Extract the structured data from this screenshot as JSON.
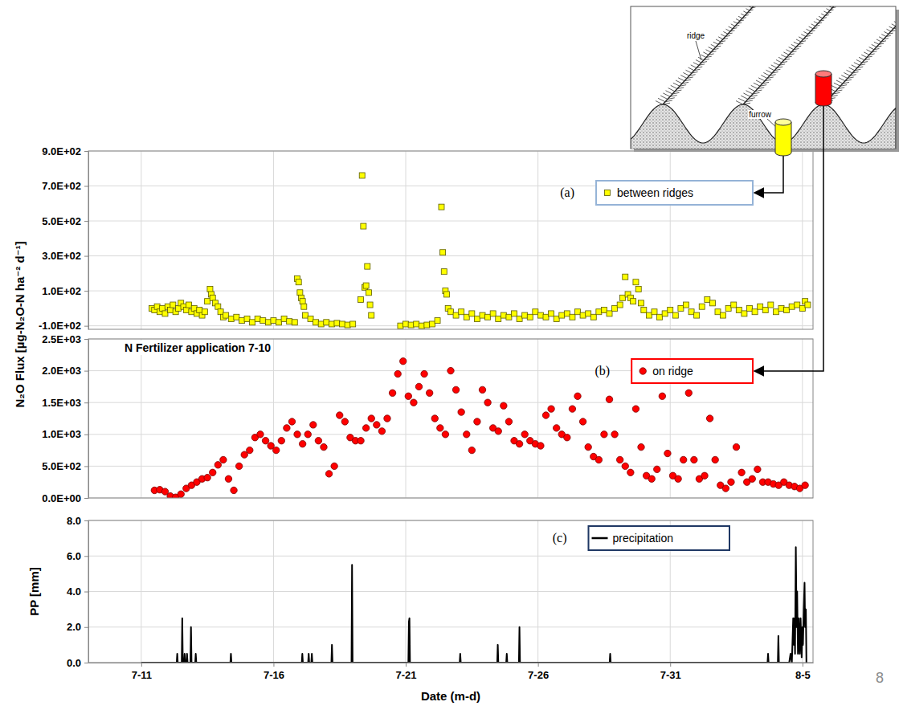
{
  "chart_data": [
    {
      "type": "scatter",
      "panel_label": "(a)",
      "grid": true,
      "legend": "upper right",
      "tick_labels": "y",
      "xlim": [
        9,
        36.4
      ],
      "xticks": [
        {
          "value": 11,
          "label": "7-11"
        },
        {
          "value": 16,
          "label": "7-16"
        },
        {
          "value": 21,
          "label": "7-21"
        },
        {
          "value": 26,
          "label": "7-26"
        },
        {
          "value": 31,
          "label": "7-31"
        },
        {
          "value": 36,
          "label": "8-5"
        }
      ],
      "ylim": [
        -120,
        900
      ],
      "yticks": [
        {
          "value": -100,
          "label": "-1.0E+02"
        },
        {
          "value": 100,
          "label": "1.0E+02"
        },
        {
          "value": 300,
          "label": "3.0E+02"
        },
        {
          "value": 500,
          "label": "5.0E+02"
        },
        {
          "value": 700,
          "label": "7.0E+02"
        },
        {
          "value": 900,
          "label": "9.0E+02"
        }
      ],
      "series": [
        {
          "name": "between ridges",
          "color": "#ffff00",
          "marker": "square",
          "x": [
            11.4,
            11.5,
            11.6,
            11.7,
            11.8,
            11.9,
            12.0,
            12.1,
            12.2,
            12.3,
            12.4,
            12.5,
            12.6,
            12.7,
            12.8,
            12.9,
            13.0,
            13.1,
            13.2,
            13.3,
            13.4,
            13.5,
            13.6,
            13.65,
            13.7,
            13.8,
            13.9,
            14.0,
            14.1,
            14.2,
            14.4,
            14.6,
            14.8,
            15.0,
            15.2,
            15.4,
            15.6,
            15.8,
            16.0,
            16.2,
            16.4,
            16.6,
            16.8,
            16.9,
            16.95,
            17.0,
            17.05,
            17.1,
            17.15,
            17.2,
            17.4,
            17.6,
            17.8,
            18.0,
            18.2,
            18.4,
            18.6,
            18.8,
            19.0,
            19.3,
            19.35,
            19.4,
            19.45,
            19.5,
            19.55,
            19.6,
            19.65,
            19.7,
            20.8,
            21.0,
            21.2,
            21.4,
            21.6,
            21.8,
            22.0,
            22.2,
            22.35,
            22.4,
            22.45,
            22.5,
            22.55,
            22.6,
            22.7,
            22.9,
            23.1,
            23.3,
            23.5,
            23.7,
            23.9,
            24.1,
            24.3,
            24.5,
            24.7,
            24.9,
            25.1,
            25.3,
            25.5,
            25.7,
            25.9,
            26.1,
            26.3,
            26.5,
            26.7,
            26.9,
            27.1,
            27.3,
            27.5,
            27.7,
            27.9,
            28.1,
            28.3,
            28.5,
            28.7,
            28.9,
            29.1,
            29.2,
            29.3,
            29.4,
            29.5,
            29.6,
            29.7,
            29.8,
            29.9,
            30.0,
            30.2,
            30.4,
            30.6,
            30.8,
            31.0,
            31.2,
            31.4,
            31.6,
            31.8,
            32.0,
            32.2,
            32.4,
            32.6,
            32.8,
            33.0,
            33.2,
            33.4,
            33.6,
            33.8,
            34.0,
            34.2,
            34.4,
            34.6,
            34.8,
            35.0,
            35.2,
            35.4,
            35.6,
            35.8,
            36.0,
            36.1,
            36.2
          ],
          "values": [
            0,
            -10,
            10,
            -20,
            0,
            -30,
            10,
            -10,
            20,
            -20,
            0,
            30,
            10,
            -10,
            20,
            -20,
            0,
            -30,
            -10,
            -40,
            -20,
            40,
            110,
            80,
            60,
            30,
            10,
            -20,
            -50,
            -40,
            -60,
            -50,
            -70,
            -60,
            -80,
            -60,
            -70,
            -80,
            -70,
            -80,
            -60,
            -75,
            -80,
            170,
            150,
            90,
            60,
            40,
            10,
            -40,
            -60,
            -80,
            -90,
            -80,
            -90,
            -85,
            -90,
            -95,
            -90,
            50,
            760,
            470,
            120,
            130,
            240,
            90,
            20,
            -40,
            -100,
            -90,
            -95,
            -90,
            -100,
            -95,
            -90,
            -70,
            580,
            320,
            210,
            100,
            80,
            0,
            -20,
            -40,
            -20,
            -50,
            -30,
            -60,
            -40,
            -50,
            -30,
            -60,
            -40,
            -50,
            -30,
            -60,
            -40,
            -50,
            -20,
            -40,
            -50,
            -30,
            -60,
            -40,
            -30,
            -50,
            -20,
            -40,
            -30,
            -50,
            -20,
            -10,
            -30,
            0,
            20,
            60,
            180,
            80,
            60,
            40,
            150,
            110,
            30,
            -10,
            -40,
            -20,
            -50,
            -30,
            -10,
            -40,
            0,
            20,
            -20,
            -40,
            10,
            50,
            30,
            -20,
            -40,
            0,
            20,
            -10,
            -30,
            0,
            -20,
            10,
            -10,
            20,
            -20,
            0,
            -10,
            10,
            20,
            0,
            40,
            20
          ]
        }
      ]
    },
    {
      "type": "scatter",
      "panel_label": "(b)",
      "annotation": "N Fertilizer application 7-10",
      "grid": true,
      "legend": "upper right",
      "tick_labels": "y",
      "xlim": [
        9,
        36.4
      ],
      "xticks": [
        {
          "value": 11,
          "label": "7-11"
        },
        {
          "value": 16,
          "label": "7-16"
        },
        {
          "value": 21,
          "label": "7-21"
        },
        {
          "value": 26,
          "label": "7-26"
        },
        {
          "value": 31,
          "label": "7-31"
        },
        {
          "value": 36,
          "label": "8-5"
        }
      ],
      "ylim": [
        0,
        2500
      ],
      "yticks": [
        {
          "value": 0,
          "label": "0.0E+00"
        },
        {
          "value": 500,
          "label": "5.0E+02"
        },
        {
          "value": 1000,
          "label": "1.0E+03"
        },
        {
          "value": 1500,
          "label": "1.5E+03"
        },
        {
          "value": 2000,
          "label": "2.0E+03"
        },
        {
          "value": 2500,
          "label": "2.5E+03"
        }
      ],
      "series": [
        {
          "name": "on ridge",
          "color": "#ff0000",
          "marker": "circle",
          "x": [
            11.5,
            11.7,
            11.9,
            12.1,
            12.3,
            12.5,
            12.7,
            12.9,
            13.1,
            13.3,
            13.5,
            13.7,
            13.9,
            14.1,
            14.3,
            14.5,
            14.7,
            14.9,
            15.1,
            15.3,
            15.5,
            15.7,
            15.9,
            16.1,
            16.3,
            16.5,
            16.7,
            16.9,
            17.1,
            17.3,
            17.5,
            17.7,
            17.9,
            18.1,
            18.3,
            18.5,
            18.7,
            18.9,
            19.1,
            19.3,
            19.5,
            19.7,
            19.9,
            20.1,
            20.3,
            20.5,
            20.7,
            20.9,
            21.1,
            21.3,
            21.5,
            21.7,
            21.9,
            22.1,
            22.3,
            22.5,
            22.7,
            22.9,
            23.1,
            23.3,
            23.5,
            23.7,
            23.9,
            24.1,
            24.3,
            24.5,
            24.7,
            24.9,
            25.1,
            25.3,
            25.5,
            25.7,
            25.9,
            26.1,
            26.3,
            26.5,
            26.7,
            26.9,
            27.1,
            27.3,
            27.5,
            27.7,
            27.9,
            28.1,
            28.3,
            28.5,
            28.7,
            28.9,
            29.1,
            29.3,
            29.5,
            29.7,
            29.9,
            30.1,
            30.3,
            30.5,
            30.7,
            30.9,
            31.1,
            31.3,
            31.5,
            31.7,
            31.9,
            32.1,
            32.3,
            32.5,
            32.7,
            32.9,
            33.1,
            33.3,
            33.5,
            33.7,
            33.9,
            34.1,
            34.3,
            34.5,
            34.7,
            34.9,
            35.1,
            35.3,
            35.5,
            35.7,
            35.9,
            36.1
          ],
          "values": [
            120,
            130,
            100,
            30,
            10,
            60,
            150,
            200,
            250,
            300,
            320,
            400,
            520,
            600,
            300,
            120,
            500,
            680,
            750,
            950,
            1000,
            900,
            820,
            750,
            900,
            1100,
            1200,
            1000,
            850,
            1000,
            1150,
            900,
            800,
            380,
            500,
            1300,
            1200,
            950,
            900,
            900,
            1100,
            1250,
            1150,
            1050,
            1250,
            1650,
            1950,
            2150,
            1600,
            1500,
            1750,
            1950,
            1650,
            1250,
            1100,
            1000,
            2000,
            1700,
            1350,
            1000,
            750,
            1200,
            1700,
            1500,
            1100,
            1050,
            1450,
            1200,
            900,
            850,
            1000,
            900,
            850,
            820,
            1300,
            1400,
            1100,
            1000,
            950,
            1400,
            1600,
            1200,
            800,
            650,
            600,
            1000,
            1550,
            1000,
            600,
            500,
            400,
            1400,
            800,
            350,
            300,
            450,
            1600,
            700,
            350,
            300,
            600,
            1650,
            600,
            300,
            350,
            1250,
            600,
            200,
            150,
            250,
            800,
            400,
            250,
            300,
            450,
            250,
            250,
            220,
            200,
            250,
            200,
            180,
            150,
            200
          ]
        }
      ]
    },
    {
      "type": "line",
      "panel_label": "(c)",
      "xlabel": "Date (m-d)",
      "ylabel": "PP [mm]",
      "grid": true,
      "legend": "upper right",
      "xlim": [
        9,
        36.4
      ],
      "xticks": [
        {
          "value": 11,
          "label": "7-11"
        },
        {
          "value": 16,
          "label": "7-16"
        },
        {
          "value": 21,
          "label": "7-21"
        },
        {
          "value": 26,
          "label": "7-26"
        },
        {
          "value": 31,
          "label": "7-31"
        },
        {
          "value": 36,
          "label": "8-5"
        }
      ],
      "ylim": [
        0,
        8
      ],
      "yticks": [
        {
          "value": 0,
          "label": "0.0"
        },
        {
          "value": 2,
          "label": "2.0"
        },
        {
          "value": 4,
          "label": "4.0"
        },
        {
          "value": 6,
          "label": "6.0"
        },
        {
          "value": 8,
          "label": "8.0"
        }
      ],
      "series": [
        {
          "name": "precipitation",
          "color": "#000000",
          "line_style": "solid",
          "x": [
            11.0,
            12.34,
            12.36,
            12.38,
            12.53,
            12.55,
            12.57,
            12.62,
            12.64,
            12.66,
            12.71,
            12.73,
            12.75,
            12.86,
            12.88,
            12.9,
            13.04,
            13.06,
            13.08,
            14.37,
            14.39,
            14.41,
            17.07,
            17.09,
            17.11,
            17.31,
            17.33,
            17.35,
            17.43,
            17.45,
            17.47,
            18.19,
            18.21,
            18.23,
            18.95,
            18.97,
            18.99,
            21.1,
            21.12,
            21.14,
            21.16,
            23.04,
            23.06,
            23.08,
            24.46,
            24.48,
            24.5,
            24.8,
            24.82,
            24.84,
            25.28,
            25.3,
            25.32,
            28.71,
            28.73,
            28.75,
            34.68,
            34.7,
            34.72,
            35.07,
            35.09,
            35.11,
            35.5,
            35.55,
            35.6,
            35.65,
            35.68,
            35.7,
            35.72,
            35.75,
            35.78,
            35.8,
            35.83,
            35.86,
            35.88,
            35.9,
            35.93,
            35.95,
            35.97,
            36.0,
            36.02,
            36.05,
            36.08,
            36.1,
            36.13,
            36.15
          ],
          "values": [
            0,
            0,
            0.5,
            0,
            0,
            2.5,
            0,
            0,
            0.5,
            0,
            0,
            0.5,
            0,
            0,
            2,
            0,
            0,
            0.5,
            0,
            0,
            0.5,
            0,
            0,
            0.5,
            0,
            0,
            0.5,
            0,
            0,
            0.5,
            0,
            0,
            1,
            0,
            0,
            5.5,
            0,
            0,
            2.3,
            2.5,
            0,
            0,
            0.5,
            0,
            0,
            1,
            0,
            0,
            0.5,
            0,
            0,
            2,
            0,
            0,
            0.5,
            0,
            0,
            0.5,
            0,
            0,
            1.5,
            0,
            0,
            0.5,
            0,
            2.5,
            1,
            2.5,
            0.5,
            6.5,
            2,
            4,
            0.5,
            2.5,
            1,
            0.5,
            2.5,
            1.5,
            0.3,
            2,
            1,
            3,
            4.5,
            2,
            3,
            0
          ]
        }
      ]
    }
  ],
  "ylabel": "N₂O Flux [µg-N₂O-N ha⁻² d⁻¹]",
  "diagram": {
    "labels": [
      "ridge",
      "furrow"
    ]
  },
  "page_number": "8"
}
